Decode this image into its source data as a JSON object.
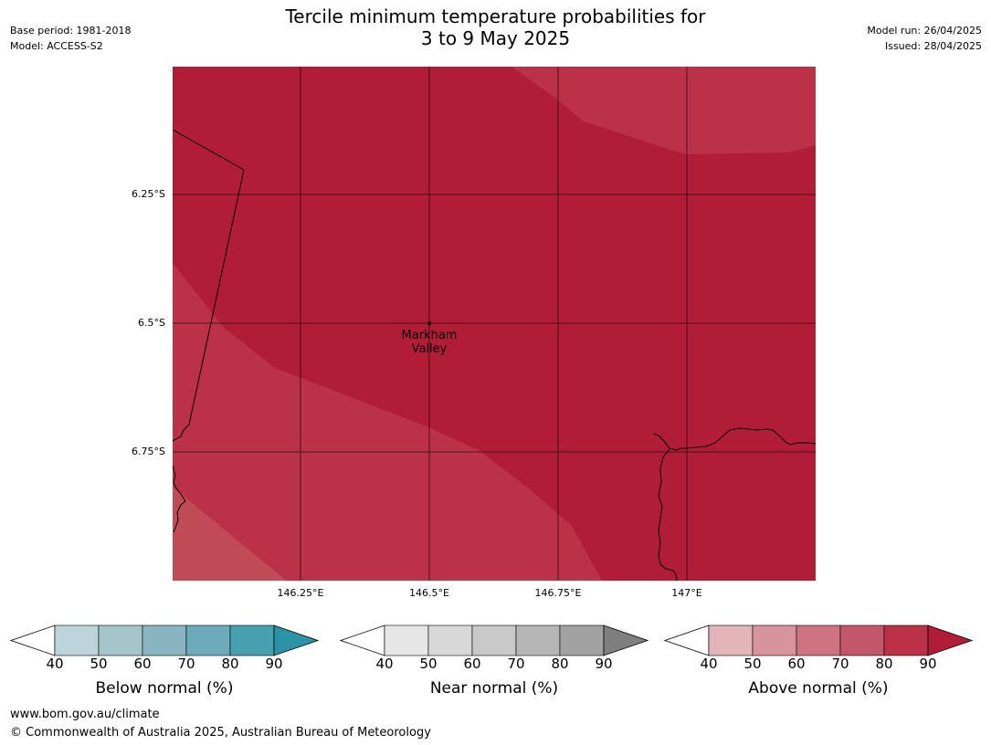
{
  "header": {
    "title_line1": "Tercile minimum temperature probabilities for",
    "title_line2": "3 to 9 May 2025",
    "base_period": "Base period: 1981-2018",
    "model": "Model: ACCESS-S2",
    "model_run": "Model run: 26/04/2025",
    "issued": "Issued: 28/04/2025"
  },
  "map": {
    "lat_labels": [
      "6.25°S",
      "6.5°S",
      "6.75°S"
    ],
    "lon_labels": [
      "146.25°E",
      "146.5°E",
      "146.75°E",
      "147°E"
    ],
    "place": {
      "line1": "Markham",
      "line2": "Valley"
    },
    "colors": {
      "above_80": "#ba3148",
      "above_90": "#b11c37",
      "above_70": "#c04b57",
      "gridline": "#000000",
      "coastline": "#000000"
    }
  },
  "legends": [
    {
      "title": "Below normal (%)",
      "ticks": [
        "40",
        "50",
        "60",
        "70",
        "80",
        "90"
      ],
      "colors": [
        "#ffffff",
        "#bdd4da",
        "#a5c5cb",
        "#89b5c2",
        "#6dabbb",
        "#46a0b0",
        "#2a93a6"
      ]
    },
    {
      "title": "Near normal (%)",
      "ticks": [
        "40",
        "50",
        "60",
        "70",
        "80",
        "90"
      ],
      "colors": [
        "#ffffff",
        "#e6e6e6",
        "#d8d8d8",
        "#c9c9c9",
        "#b6b6b6",
        "#a2a2a2",
        "#7f7f7f"
      ]
    },
    {
      "title": "Above normal (%)",
      "ticks": [
        "40",
        "50",
        "60",
        "70",
        "80",
        "90"
      ],
      "colors": [
        "#ffffff",
        "#e2b5bb",
        "#d7949c",
        "#cd7480",
        "#c45669",
        "#ba3148",
        "#b11c37"
      ]
    }
  ],
  "footer": {
    "url": "www.bom.gov.au/climate",
    "copyright": "© Commonwealth of Australia 2025, Australian Bureau of Meteorology"
  }
}
